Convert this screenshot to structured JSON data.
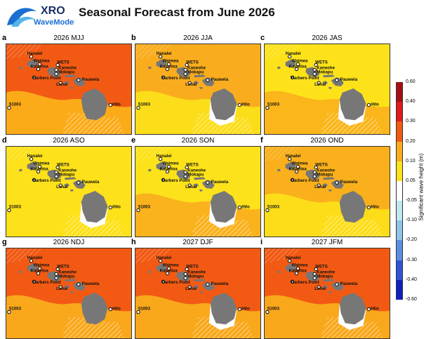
{
  "logo": {
    "line1": "XRO",
    "line2": "WaveModel"
  },
  "title": "Seasonal Forecast from June 2026",
  "station_labels": [
    "Hanalei",
    "Waimea",
    "WETS",
    "Kalaeloa",
    "Kaneohe",
    "Mokapu",
    "Barbers Point",
    "Lanai",
    "Pauwela",
    "Hilo",
    "51003"
  ],
  "panels": [
    {
      "letter": "a",
      "title": "2026 MJJ",
      "ocean": "#f25a14",
      "patch": "#fdb418",
      "land_white": false
    },
    {
      "letter": "b",
      "title": "2026 JJA",
      "ocean": "#f9ad1e",
      "patch": "#fce21a",
      "land_white": true
    },
    {
      "letter": "c",
      "title": "2026 JAS",
      "ocean": "#fde21a",
      "patch": "#f9b11c",
      "land_white": true
    },
    {
      "letter": "d",
      "title": "2026 ASO",
      "ocean": "#fde11a",
      "patch": "#fde11a",
      "land_white": true
    },
    {
      "letter": "e",
      "title": "2026 SON",
      "ocean": "#fce21a",
      "patch": "#f9ad1e",
      "land_white": true
    },
    {
      "letter": "f",
      "title": "2026 OND",
      "ocean": "#f9b01c",
      "patch": "#fde21a",
      "land_white": false
    },
    {
      "letter": "g",
      "title": "2026 NDJ",
      "ocean": "#f25a14",
      "patch": "#f9b01c",
      "land_white": false
    },
    {
      "letter": "h",
      "title": "2027 DJF",
      "ocean": "#f25a14",
      "patch": "#f9b01c",
      "land_white": true
    },
    {
      "letter": "i",
      "title": "2027 JFM",
      "ocean": "#f25a14",
      "patch": "#f9b01c",
      "land_white": true
    }
  ],
  "colorbar": {
    "label": "Significant wave height (m)",
    "ticks": [
      "0.60",
      "0.40",
      "0.30",
      "0.20",
      "0.10",
      "0.05",
      "-0.05",
      "-0.10",
      "-0.20",
      "-0.30",
      "-0.40",
      "-0.60"
    ],
    "colors": [
      "#a50f15",
      "#e31a1c",
      "#f25a14",
      "#f9ad1e",
      "#fde21a",
      "#ffffff",
      "#bfe8f0",
      "#8cc5e8",
      "#5a8fe0",
      "#2f54d8",
      "#1020c0"
    ]
  }
}
